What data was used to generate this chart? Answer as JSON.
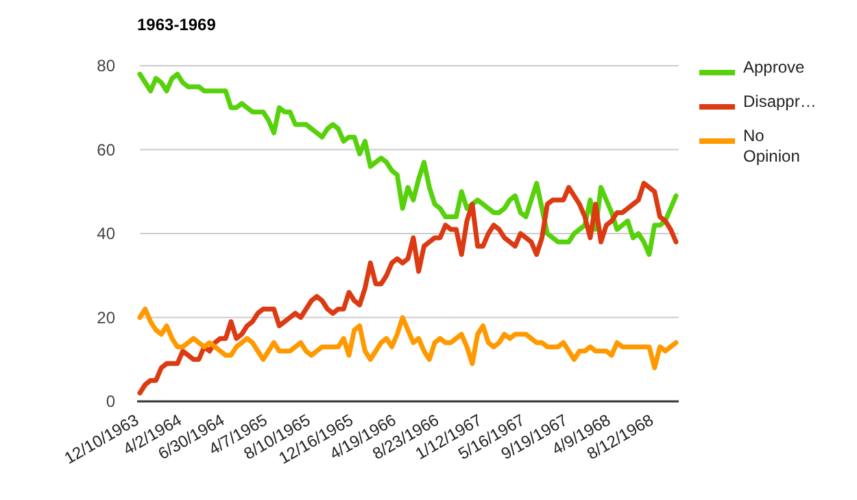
{
  "chart_data": {
    "type": "line",
    "title": "1963-1969",
    "categories": [
      "12/10/1963",
      null,
      null,
      null,
      null,
      null,
      null,
      null,
      "4/2/1964",
      null,
      null,
      null,
      null,
      null,
      null,
      null,
      "6/30/1964",
      null,
      null,
      null,
      null,
      null,
      null,
      null,
      "4/7/1965",
      null,
      null,
      null,
      null,
      null,
      null,
      null,
      "8/10/1965",
      null,
      null,
      null,
      null,
      null,
      null,
      null,
      "12/16/1965",
      null,
      null,
      null,
      null,
      null,
      null,
      null,
      "4/19/1966",
      null,
      null,
      null,
      null,
      null,
      null,
      null,
      "8/23/1966",
      null,
      null,
      null,
      null,
      null,
      null,
      null,
      "1/12/1967",
      null,
      null,
      null,
      null,
      null,
      null,
      null,
      "5/16/1967",
      null,
      null,
      null,
      null,
      null,
      null,
      null,
      "9/19/1967",
      null,
      null,
      null,
      null,
      null,
      null,
      null,
      "4/9/1968",
      null,
      null,
      null,
      null,
      null,
      null,
      null,
      "8/12/1968",
      null,
      null,
      null,
      null
    ],
    "series": [
      {
        "name": "Approve",
        "color": "#57d10b",
        "values": [
          78,
          76,
          74,
          77,
          76,
          74,
          77,
          78,
          76,
          75,
          75,
          75,
          74,
          74,
          74,
          74,
          74,
          70,
          70,
          71,
          70,
          69,
          69,
          69,
          67,
          64,
          70,
          69,
          69,
          66,
          66,
          66,
          65,
          64,
          63,
          65,
          66,
          65,
          62,
          63,
          63,
          59,
          62,
          56,
          57,
          58,
          57,
          55,
          54,
          46,
          51,
          48,
          53,
          57,
          51,
          47,
          46,
          44,
          44,
          44,
          50,
          46,
          47,
          48,
          47,
          46,
          45,
          45,
          46,
          48,
          49,
          45,
          44,
          48,
          52,
          46,
          40,
          39,
          38,
          38,
          38,
          40,
          41,
          42,
          48,
          41,
          51,
          48,
          45,
          41,
          42,
          43,
          39,
          40,
          38,
          35,
          42,
          42,
          43,
          46,
          49
        ]
      },
      {
        "name": "Disappr…",
        "color": "#db3a12",
        "values": [
          2,
          4,
          5,
          5,
          8,
          9,
          9,
          9,
          12,
          11,
          10,
          10,
          13,
          12,
          14,
          15,
          15,
          19,
          15,
          16,
          18,
          19,
          21,
          22,
          22,
          22,
          18,
          19,
          20,
          21,
          20,
          22,
          24,
          25,
          24,
          22,
          21,
          22,
          22,
          26,
          24,
          23,
          27,
          33,
          28,
          28,
          30,
          33,
          34,
          33,
          34,
          39,
          31,
          37,
          38,
          39,
          39,
          42,
          41,
          41,
          35,
          43,
          47,
          37,
          37,
          40,
          42,
          41,
          39,
          38,
          37,
          40,
          39,
          38,
          35,
          39,
          47,
          48,
          48,
          48,
          51,
          49,
          47,
          44,
          39,
          47,
          38,
          42,
          43,
          45,
          45,
          46,
          47,
          48,
          52,
          51,
          50,
          44,
          43,
          41,
          38
        ]
      },
      {
        "name": "No Opinion",
        "color": "#ff9900",
        "values": [
          20,
          22,
          19,
          17,
          16,
          18,
          15,
          13,
          13,
          14,
          15,
          14,
          13,
          14,
          13,
          12,
          11,
          11,
          13,
          14,
          15,
          14,
          12,
          10,
          12,
          14,
          12,
          12,
          12,
          13,
          14,
          12,
          11,
          12,
          13,
          13,
          13,
          13,
          15,
          11,
          17,
          18,
          12,
          10,
          12,
          14,
          15,
          13,
          16,
          20,
          17,
          14,
          15,
          12,
          10,
          14,
          15,
          14,
          14,
          15,
          16,
          13,
          9,
          16,
          18,
          14,
          13,
          14,
          16,
          15,
          16,
          16,
          16,
          15,
          14,
          14,
          13,
          13,
          13,
          14,
          12,
          10,
          12,
          12,
          13,
          12,
          12,
          12,
          11,
          14,
          13,
          13,
          13,
          13,
          13,
          13,
          8,
          13,
          12,
          13,
          14
        ]
      }
    ],
    "ylim": [
      0,
      80
    ],
    "yticks": [
      0,
      20,
      40,
      60,
      80
    ],
    "grid": "y",
    "legend": "right",
    "marker": "none",
    "line_style": "solid"
  }
}
